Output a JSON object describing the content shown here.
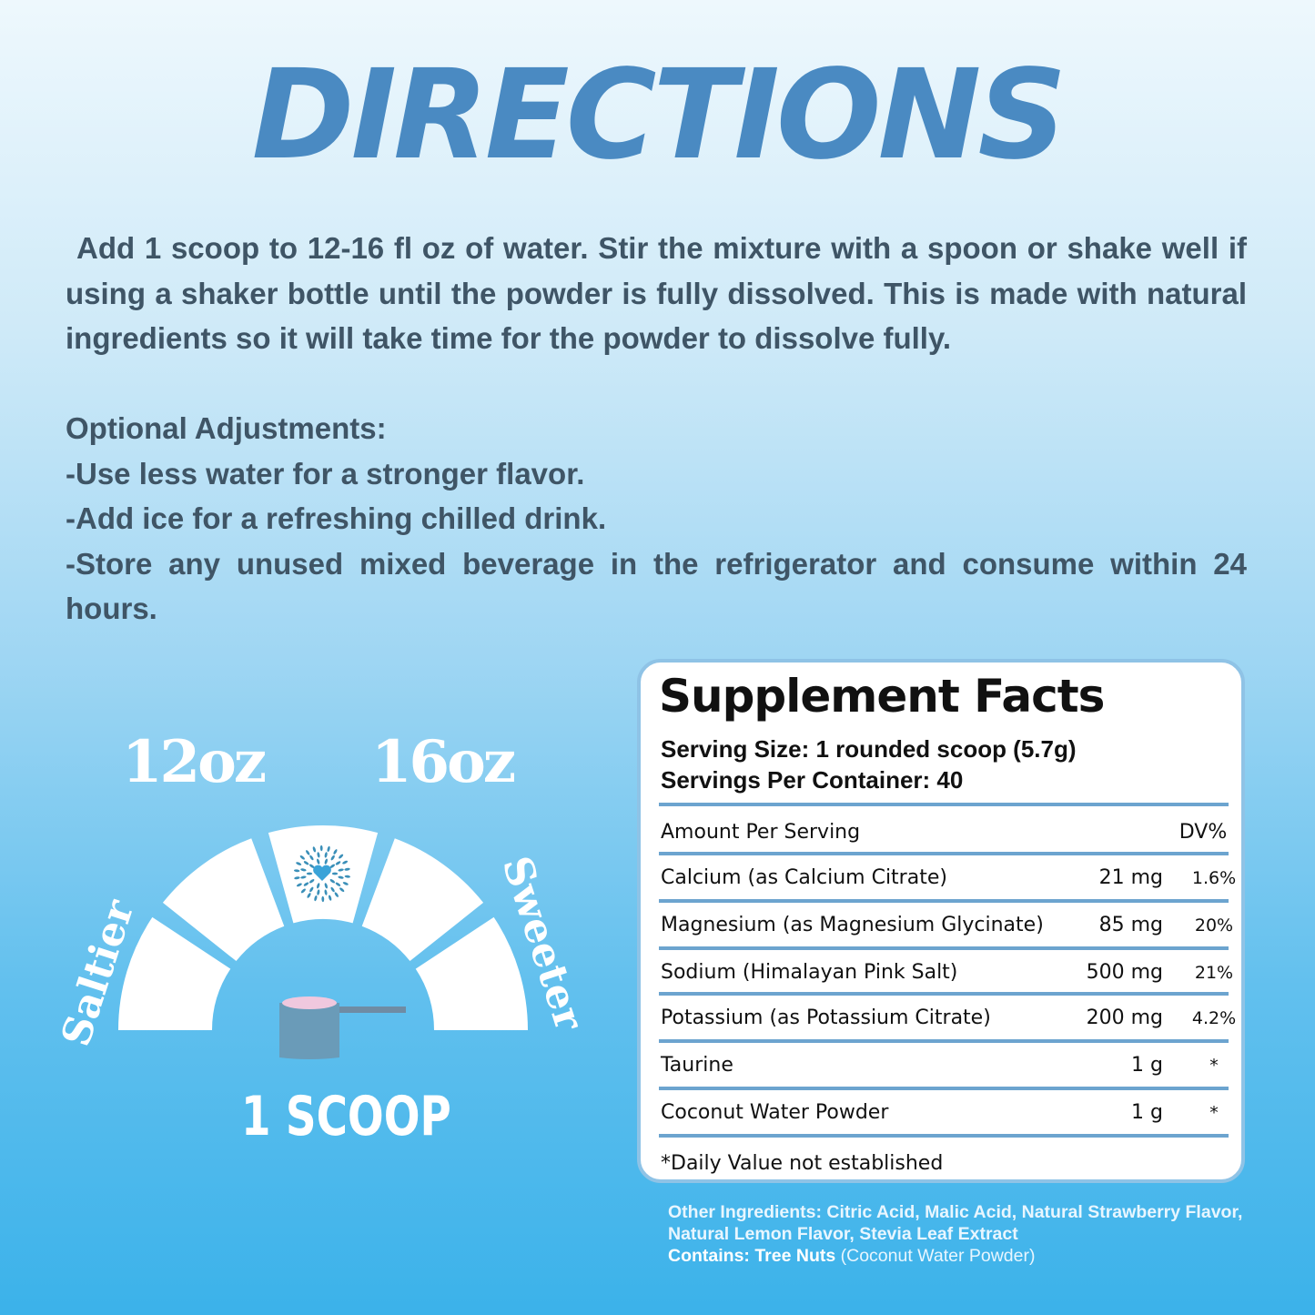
{
  "title": "DIRECTIONS",
  "directions": "Add 1 scoop to 12-16 fl oz of water. Stir the mixture with a spoon or shake well if using a shaker bottle until the powder is fully dissolved. This is made with natural ingredients so it will take time for the powder to dissolve fully.",
  "optional": {
    "heading": "Optional Adjustments:",
    "items": [
      "-Use less water for a stronger flavor.",
      "-Add ice for a refreshing chilled drink.",
      "-Store any unused mixed beverage in the refrigerator and consume within 24 hours."
    ]
  },
  "gauge": {
    "left_oz": "12oz",
    "right_oz": "16oz",
    "left_label": "Saltier",
    "right_label": "Sweeter",
    "scoop_label": "1 SCOOP",
    "center_icon": "heart-burst-logo-icon",
    "scoop_icon": "measuring-scoop-icon"
  },
  "facts": {
    "title": "Supplement Facts",
    "serving_size": "Serving Size: 1 rounded scoop (5.7g)",
    "servings_per_container": "Servings Per Container: 40",
    "header_left": "Amount Per Serving",
    "header_right": "DV%",
    "rows": [
      {
        "name": "Calcium (as Calcium Citrate)",
        "amount": "21 mg",
        "dv": "1.6%"
      },
      {
        "name": "Magnesium (as Magnesium Glycinate)",
        "amount": "85 mg",
        "dv": "20%"
      },
      {
        "name": "Sodium (Himalayan Pink Salt)",
        "amount": "500 mg",
        "dv": "21%"
      },
      {
        "name": "Potassium (as Potassium Citrate)",
        "amount": "200 mg",
        "dv": "4.2%"
      },
      {
        "name": "Taurine",
        "amount": "1 g",
        "dv": "*"
      },
      {
        "name": "Coconut Water Powder",
        "amount": "1 g",
        "dv": "*"
      }
    ],
    "footnote": "*Daily Value not established"
  },
  "other_ingredients": "Other Ingredients: Citric Acid, Malic Acid, Natural Strawberry Flavor, Natural Lemon Flavor, Stevia Leaf Extract",
  "contains_label": "Contains: Tree Nuts",
  "contains_detail": "(Coconut Water Powder)",
  "colors": {
    "title": "#4a8ac2",
    "text": "#3f5566",
    "rule": "#6ca4cf",
    "bg_bottom": "#3bb2ea"
  }
}
